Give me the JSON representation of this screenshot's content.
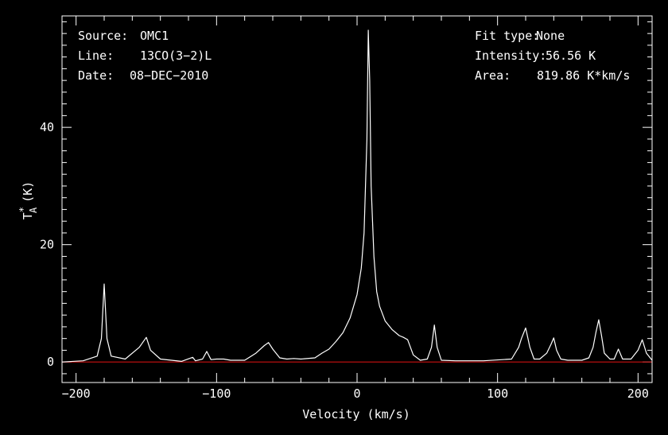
{
  "chart_data": {
    "type": "line",
    "xlabel": "Velocity (km/s)",
    "ylabel": {
      "base": "T",
      "sup": "*",
      "sub": "A",
      "unit": "(K)"
    },
    "xlim": [
      -210,
      210
    ],
    "ylim": [
      -3.5,
      59
    ],
    "xticks": [
      -200,
      -100,
      0,
      100,
      200
    ],
    "xtick_labels": [
      "−200",
      "−100",
      "0",
      "100",
      "200"
    ],
    "yticks": [
      0,
      20,
      40
    ],
    "ytick_labels": [
      "0",
      "20",
      "40"
    ],
    "baseline": 0,
    "colors": {
      "background": "#000000",
      "spectrum": "#ffffff",
      "baseline": "#cc1111",
      "frame": "#ffffff"
    },
    "series": [
      {
        "x": [
          -210,
          -195,
          -185,
          -182,
          -180,
          -178,
          -175,
          -165,
          -155,
          -150,
          -147,
          -140,
          -125,
          -117,
          -115,
          -110,
          -107,
          -104,
          -100,
          -95,
          -90,
          -80,
          -72,
          -66,
          -63,
          -60,
          -55,
          -50,
          -45,
          -40,
          -30,
          -25,
          -20,
          -15,
          -10,
          -5,
          0,
          3,
          5,
          7,
          8,
          9,
          10,
          12,
          14,
          16,
          20,
          25,
          30,
          33,
          36,
          40,
          45,
          50,
          53,
          55,
          57,
          60,
          70,
          90,
          110,
          115,
          117,
          120,
          123,
          126,
          130,
          135,
          138,
          140,
          142,
          145,
          150,
          160,
          165,
          168,
          170,
          172,
          174,
          176,
          180,
          183,
          186,
          189,
          195,
          200,
          203,
          206,
          210
        ],
        "y": [
          0,
          0.2,
          1,
          4,
          13.3,
          4,
          1,
          0.5,
          2.5,
          4.2,
          2,
          0.5,
          0.1,
          0.8,
          0.2,
          0.5,
          1.8,
          0.4,
          0.5,
          0.5,
          0.3,
          0.3,
          1.5,
          2.8,
          3.3,
          2.2,
          0.7,
          0.5,
          0.6,
          0.5,
          0.7,
          1.5,
          2.2,
          3.5,
          5,
          7.5,
          11.5,
          16,
          22,
          38,
          56.56,
          48,
          30,
          18,
          12,
          9.5,
          7,
          5.5,
          4.5,
          4.2,
          3.8,
          1.2,
          0.3,
          0.5,
          2.5,
          6.3,
          2.5,
          0.3,
          0.2,
          0.2,
          0.5,
          2.5,
          4,
          5.8,
          2.5,
          0.5,
          0.5,
          1.5,
          3,
          4.1,
          2,
          0.5,
          0.3,
          0.3,
          0.7,
          2.5,
          5,
          7.2,
          4.5,
          1.5,
          0.5,
          0.5,
          2.2,
          0.5,
          0.5,
          2,
          3.8,
          1.5,
          0.3
        ]
      }
    ]
  },
  "annotations": {
    "source_label": "Source:",
    "source_value": "OMC1",
    "line_label": "Line:",
    "line_value": "13CO(3−2)L",
    "date_label": "Date:",
    "date_value": "08−DEC−2010",
    "fit_label": "Fit type:",
    "fit_value": "None",
    "intensity_label": "Intensity:",
    "intensity_value": "56.56 K",
    "area_label": "Area:",
    "area_value": "819.86 K*km/s"
  }
}
